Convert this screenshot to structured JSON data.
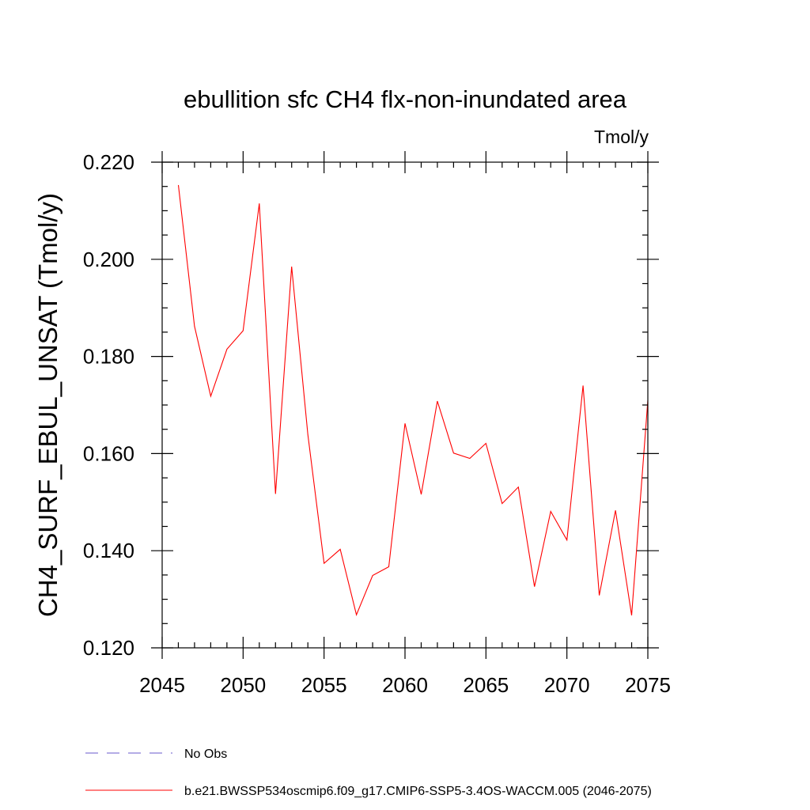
{
  "chart_data": {
    "type": "line",
    "title": "ebullition sfc CH4 flx-non-inundated area",
    "units_label": "Tmol/y",
    "xlabel": "",
    "ylabel": "CH4_SURF_EBUL_UNSAT  (Tmol/y)",
    "xlim": [
      2045,
      2075
    ],
    "ylim": [
      0.12,
      0.22
    ],
    "x_ticks": [
      2045,
      2050,
      2055,
      2060,
      2065,
      2070,
      2075
    ],
    "y_ticks": [
      0.12,
      0.14,
      0.16,
      0.18,
      0.2,
      0.22
    ],
    "y_tick_labels": [
      "0.120",
      "0.140",
      "0.160",
      "0.180",
      "0.200",
      "0.220"
    ],
    "x_minor_step": 1,
    "y_minor_step": 0.005,
    "series": [
      {
        "name": "b.e21.BWSSP534oscmip6.f09_g17.CMIP6-SSP5-3.4OS-WACCM.005 (2046-2075)",
        "color": "#ff0000",
        "x": [
          2046,
          2047,
          2048,
          2049,
          2050,
          2051,
          2052,
          2053,
          2054,
          2055,
          2056,
          2057,
          2058,
          2059,
          2060,
          2061,
          2062,
          2063,
          2064,
          2065,
          2066,
          2067,
          2068,
          2069,
          2070,
          2071,
          2072,
          2073,
          2074,
          2075
        ],
        "values": [
          0.2153,
          0.1862,
          0.1718,
          0.1815,
          0.1853,
          0.2115,
          0.1517,
          0.1985,
          0.1639,
          0.1374,
          0.1403,
          0.1268,
          0.1349,
          0.1367,
          0.1662,
          0.1516,
          0.1708,
          0.1601,
          0.159,
          0.1621,
          0.1497,
          0.1531,
          0.1326,
          0.1481,
          0.1422,
          0.174,
          0.1308,
          0.1483,
          0.1267,
          0.171
        ]
      }
    ],
    "legend": [
      {
        "label": "No Obs",
        "color": "#6a5acd",
        "style": "dashed"
      },
      {
        "label": "b.e21.BWSSP534oscmip6.f09_g17.CMIP6-SSP5-3.4OS-WACCM.005 (2046-2075)",
        "color": "#ff0000",
        "style": "solid"
      }
    ]
  }
}
